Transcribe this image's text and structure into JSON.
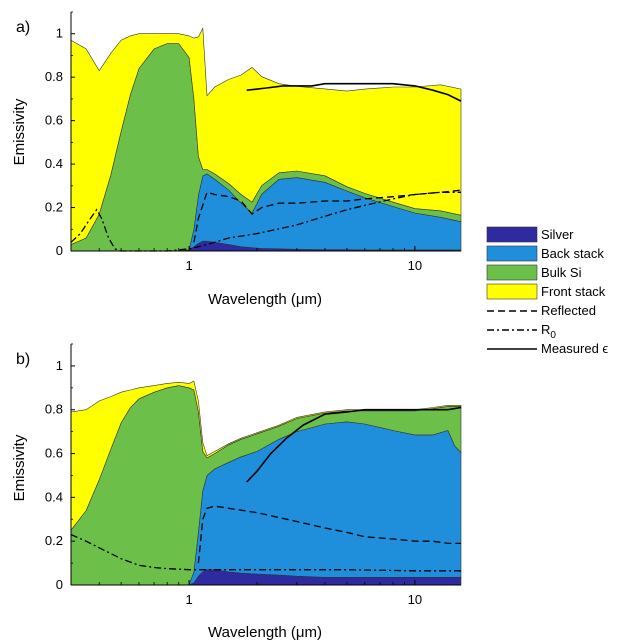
{
  "chart_data": [
    {
      "panel_label": "a)",
      "type": "area",
      "stacked": true,
      "x_scale": "log",
      "xlim": [
        0.3,
        16
      ],
      "ylim": [
        0,
        1.1
      ],
      "xlabel": "Wavelength (μm)",
      "ylabel": "Emissivity",
      "x_ticks": [
        1,
        10
      ],
      "x_tick_labels": [
        "1",
        "10"
      ],
      "y_ticks": [
        0,
        0.2,
        0.4,
        0.6,
        0.8,
        1
      ],
      "y_tick_labels": [
        "0",
        "0.2",
        "0.4",
        "0.6",
        "0.8",
        "1"
      ],
      "grid": false,
      "x": [
        0.3,
        0.35,
        0.4,
        0.45,
        0.5,
        0.55,
        0.6,
        0.7,
        0.8,
        0.9,
        1.0,
        1.05,
        1.1,
        1.15,
        1.2,
        1.3,
        1.5,
        1.7,
        1.9,
        2.1,
        2.5,
        3.0,
        4.0,
        5.0,
        6.0,
        8.0,
        10.0,
        13.0,
        16.0
      ],
      "series": [
        {
          "name": "Silver",
          "kind": "area",
          "color": "#2e2aa0",
          "values": [
            0,
            0,
            0,
            0,
            0,
            0,
            0,
            0,
            0,
            0,
            0.005,
            0.02,
            0.035,
            0.045,
            0.045,
            0.04,
            0.03,
            0.02,
            0.015,
            0.012,
            0.01,
            0.008,
            0.006,
            0.006,
            0.005,
            0.005,
            0.005,
            0.005,
            0.005
          ]
        },
        {
          "name": "Back stack",
          "kind": "area",
          "color": "#1f8fdc",
          "values": [
            0,
            0,
            0,
            0,
            0,
            0,
            0,
            0,
            0,
            0,
            0,
            0.08,
            0.22,
            0.3,
            0.31,
            0.29,
            0.25,
            0.2,
            0.16,
            0.25,
            0.32,
            0.33,
            0.31,
            0.27,
            0.24,
            0.2,
            0.17,
            0.15,
            0.13
          ]
        },
        {
          "name": "Bulk Si",
          "kind": "area",
          "color": "#6cc04a",
          "values": [
            0.03,
            0.06,
            0.17,
            0.35,
            0.55,
            0.72,
            0.84,
            0.93,
            0.955,
            0.955,
            0.885,
            0.6,
            0.18,
            0.03,
            0.02,
            0.025,
            0.03,
            0.04,
            0.05,
            0.04,
            0.03,
            0.03,
            0.03,
            0.02,
            0.02,
            0.02,
            0.02,
            0.03,
            0.03
          ]
        },
        {
          "name": "Front stack",
          "kind": "area",
          "color": "#ffff00",
          "values": [
            0.94,
            0.87,
            0.66,
            0.56,
            0.42,
            0.27,
            0.16,
            0.07,
            0.045,
            0.045,
            0.1,
            0.28,
            0.55,
            0.65,
            0.34,
            0.4,
            0.48,
            0.55,
            0.62,
            0.5,
            0.41,
            0.39,
            0.4,
            0.44,
            0.48,
            0.53,
            0.56,
            0.58,
            0.58
          ]
        },
        {
          "name": "Reflected",
          "kind": "line",
          "dash": "dashed",
          "x": [
            1.05,
            1.1,
            1.2,
            1.3,
            1.5,
            1.7,
            1.9,
            2.1,
            2.5,
            3,
            4,
            5,
            6,
            8,
            10,
            13,
            16
          ],
          "values": [
            0.04,
            0.15,
            0.27,
            0.26,
            0.25,
            0.23,
            0.17,
            0.2,
            0.22,
            0.22,
            0.23,
            0.23,
            0.24,
            0.25,
            0.26,
            0.27,
            0.28
          ]
        },
        {
          "name": "R0",
          "kind": "line",
          "dash": "dashdot",
          "x": [
            0.3,
            0.33,
            0.36,
            0.39,
            0.41,
            0.44,
            0.47,
            0.5,
            0.55,
            0.6,
            0.7,
            0.8,
            0.9,
            1.0,
            1.1,
            1.2,
            1.5,
            2,
            3,
            4,
            5,
            6,
            8,
            10,
            13,
            16
          ],
          "values": [
            0.04,
            0.08,
            0.14,
            0.19,
            0.15,
            0.06,
            0.01,
            0.0,
            0.0,
            0.0,
            0.0,
            0.0,
            0.005,
            0.01,
            0.02,
            0.03,
            0.06,
            0.08,
            0.12,
            0.16,
            0.19,
            0.21,
            0.24,
            0.26,
            0.27,
            0.27
          ]
        },
        {
          "name": "Measured ϵ",
          "kind": "line",
          "dash": "solid",
          "x": [
            1.8,
            2.2,
            2.6,
            3,
            3.5,
            4,
            5,
            6,
            7,
            8,
            10,
            12,
            14,
            16
          ],
          "values": [
            0.74,
            0.75,
            0.76,
            0.76,
            0.76,
            0.77,
            0.77,
            0.77,
            0.77,
            0.77,
            0.76,
            0.74,
            0.72,
            0.69
          ]
        }
      ]
    },
    {
      "panel_label": "b)",
      "type": "area",
      "stacked": true,
      "x_scale": "log",
      "xlim": [
        0.3,
        16
      ],
      "ylim": [
        0,
        1.1
      ],
      "xlabel": "Wavelength (μm)",
      "ylabel": "Emissivity",
      "x_ticks": [
        1,
        10
      ],
      "x_tick_labels": [
        "1",
        "10"
      ],
      "y_ticks": [
        0,
        0.2,
        0.4,
        0.6,
        0.8,
        1
      ],
      "y_tick_labels": [
        "0",
        "0.2",
        "0.4",
        "0.6",
        "0.8",
        "1"
      ],
      "grid": false,
      "x": [
        0.3,
        0.35,
        0.4,
        0.45,
        0.5,
        0.55,
        0.6,
        0.7,
        0.8,
        0.9,
        1.0,
        1.05,
        1.1,
        1.15,
        1.2,
        1.3,
        1.5,
        1.7,
        2.0,
        2.5,
        3.0,
        4.0,
        5.0,
        6.0,
        8.0,
        10.0,
        12.0,
        14.0,
        15.0,
        16.0
      ],
      "series": [
        {
          "name": "Silver",
          "kind": "area",
          "color": "#2e2aa0",
          "values": [
            0,
            0,
            0,
            0,
            0,
            0,
            0,
            0,
            0,
            0,
            0,
            0.01,
            0.04,
            0.06,
            0.07,
            0.07,
            0.06,
            0.055,
            0.05,
            0.045,
            0.04,
            0.035,
            0.035,
            0.035,
            0.035,
            0.035,
            0.035,
            0.035,
            0.035,
            0.035
          ]
        },
        {
          "name": "Back stack",
          "kind": "area",
          "color": "#1f8fdc",
          "values": [
            0,
            0,
            0,
            0,
            0,
            0,
            0,
            0,
            0,
            0,
            0,
            0.05,
            0.2,
            0.37,
            0.43,
            0.46,
            0.5,
            0.53,
            0.56,
            0.62,
            0.66,
            0.7,
            0.71,
            0.7,
            0.67,
            0.65,
            0.65,
            0.67,
            0.6,
            0.57
          ]
        },
        {
          "name": "Bulk Si",
          "kind": "area",
          "color": "#6cc04a",
          "values": [
            0.25,
            0.34,
            0.48,
            0.62,
            0.74,
            0.81,
            0.85,
            0.88,
            0.9,
            0.91,
            0.9,
            0.83,
            0.55,
            0.18,
            0.08,
            0.07,
            0.08,
            0.08,
            0.08,
            0.06,
            0.06,
            0.05,
            0.05,
            0.06,
            0.09,
            0.11,
            0.12,
            0.11,
            0.18,
            0.21
          ]
        },
        {
          "name": "Front stack",
          "kind": "area",
          "color": "#ffff00",
          "values": [
            0.54,
            0.46,
            0.36,
            0.24,
            0.14,
            0.08,
            0.05,
            0.03,
            0.02,
            0.015,
            0.02,
            0.04,
            0.05,
            0.04,
            0.01,
            0.01,
            0.005,
            0.005,
            0.005,
            0.005,
            0.005,
            0.005,
            0.005,
            0.005,
            0.005,
            0.005,
            0.005,
            0.005,
            0.005,
            0.005
          ]
        },
        {
          "name": "Reflected",
          "kind": "line",
          "dash": "dashed",
          "x": [
            1.1,
            1.15,
            1.2,
            1.3,
            1.5,
            2,
            3,
            4,
            5,
            6,
            8,
            10,
            12,
            14,
            16
          ],
          "values": [
            0.1,
            0.3,
            0.35,
            0.36,
            0.35,
            0.33,
            0.29,
            0.26,
            0.24,
            0.22,
            0.21,
            0.2,
            0.2,
            0.19,
            0.19
          ]
        },
        {
          "name": "R0",
          "kind": "line",
          "dash": "dashdot",
          "x": [
            0.3,
            0.35,
            0.4,
            0.5,
            0.6,
            0.7,
            0.8,
            1.0,
            1.5,
            2,
            3,
            5,
            10,
            16
          ],
          "values": [
            0.23,
            0.2,
            0.17,
            0.12,
            0.09,
            0.08,
            0.075,
            0.07,
            0.07,
            0.07,
            0.07,
            0.07,
            0.065,
            0.065
          ]
        },
        {
          "name": "Measured ϵ",
          "kind": "line",
          "dash": "solid",
          "x": [
            1.8,
            2.0,
            2.3,
            2.7,
            3.2,
            4,
            5,
            6,
            7,
            8,
            10,
            12,
            14,
            16
          ],
          "values": [
            0.47,
            0.52,
            0.6,
            0.67,
            0.73,
            0.78,
            0.79,
            0.8,
            0.8,
            0.8,
            0.8,
            0.8,
            0.8,
            0.81
          ]
        }
      ]
    }
  ],
  "legend": {
    "placement": "right",
    "items": [
      {
        "label": "Silver",
        "swatch": "fill",
        "color": "#2e2aa0"
      },
      {
        "label": "Back stack",
        "swatch": "fill",
        "color": "#1f8fdc"
      },
      {
        "label": "Bulk Si",
        "swatch": "fill",
        "color": "#6cc04a"
      },
      {
        "label": "Front stack",
        "swatch": "fill",
        "color": "#ffff00"
      },
      {
        "label": "Reflected",
        "swatch": "dashed",
        "color": "#000000"
      },
      {
        "label": "R",
        "label_sub": "0",
        "swatch": "dashdot",
        "color": "#000000"
      },
      {
        "label": "Measured ϵ",
        "swatch": "solid",
        "color": "#000000"
      }
    ]
  }
}
